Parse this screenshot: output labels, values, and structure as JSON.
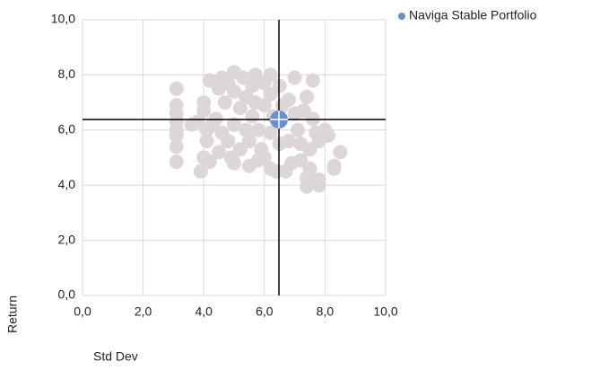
{
  "chart_data": {
    "type": "scatter",
    "x_label": "Std Dev",
    "y_label": "Return",
    "xlim": [
      0,
      10
    ],
    "ylim": [
      0,
      10
    ],
    "xticks": [
      {
        "value": 0,
        "label": "0,0"
      },
      {
        "value": 2,
        "label": "2,0"
      },
      {
        "value": 4,
        "label": "4,0"
      },
      {
        "value": 6,
        "label": "6,0"
      },
      {
        "value": 8,
        "label": "8,0"
      },
      {
        "value": 10,
        "label": "10,0"
      }
    ],
    "yticks": [
      {
        "value": 0,
        "label": "0,0"
      },
      {
        "value": 2,
        "label": "2,0"
      },
      {
        "value": 4,
        "label": "4,0"
      },
      {
        "value": 6,
        "label": "6,0"
      },
      {
        "value": 8,
        "label": "8,0"
      },
      {
        "value": 10,
        "label": "10,0"
      }
    ],
    "grid": true,
    "legend": "top-right",
    "series": [
      {
        "color": "#dcd6d6",
        "x": [
          3.1,
          3.1,
          3.1,
          3.1,
          3.1,
          3.1,
          3.1,
          3.1,
          3.9,
          4.0,
          4.2,
          4.1,
          4.1,
          4.2,
          4.6,
          5.0,
          5.3,
          5.7,
          6.2,
          7.0,
          7.6,
          7.4,
          8.5,
          8.3,
          8.3,
          7.8,
          7.4,
          7.4,
          7.8,
          6.7,
          6.4,
          6.2,
          5.5,
          5.0,
          4.9,
          5.8,
          6.0,
          6.9,
          7.2,
          7.5,
          7.8,
          8.0,
          7.6,
          7.3,
          3.8,
          3.6,
          4.0,
          4.4,
          4.6,
          4.8,
          5.0,
          5.2,
          5.4,
          5.0,
          4.7,
          5.6,
          5.8,
          6.0,
          6.2,
          6.5,
          6.8,
          7.0,
          7.1,
          6.8,
          6.5,
          6.2,
          5.9,
          5.5,
          5.2,
          4.5,
          5.6,
          6.0,
          4.8,
          5.4,
          6.6,
          7.2,
          6.3,
          5.7,
          4.3,
          7.7,
          7.5,
          8.1,
          4.0,
          4.5
        ],
        "values": [
          7.5,
          6.9,
          6.6,
          6.3,
          6.0,
          5.8,
          5.4,
          4.85,
          4.5,
          5.0,
          4.85,
          5.6,
          6.0,
          7.8,
          7.9,
          8.1,
          7.9,
          8.0,
          8.0,
          7.9,
          7.8,
          7.2,
          5.2,
          4.6,
          4.7,
          4.2,
          3.95,
          4.25,
          4.0,
          4.5,
          4.5,
          4.6,
          4.7,
          4.8,
          5.0,
          4.9,
          5.0,
          4.8,
          4.9,
          5.3,
          5.6,
          6.0,
          6.4,
          6.7,
          6.3,
          6.2,
          6.7,
          6.4,
          5.9,
          5.6,
          6.2,
          6.8,
          7.2,
          7.4,
          7.0,
          6.5,
          6.0,
          6.9,
          7.3,
          7.6,
          7.1,
          6.6,
          6.0,
          5.6,
          5.5,
          5.9,
          5.3,
          5.6,
          5.3,
          5.2,
          7.6,
          7.7,
          7.7,
          6.0,
          6.9,
          5.5,
          6.5,
          7.0,
          6.2,
          5.9,
          4.6,
          5.8,
          7.0,
          7.5
        ]
      },
      {
        "name": "Naviga Stable Portfolio",
        "color": "#6a8fd0",
        "x": [
          6.48
        ],
        "values": [
          6.38
        ]
      }
    ]
  }
}
